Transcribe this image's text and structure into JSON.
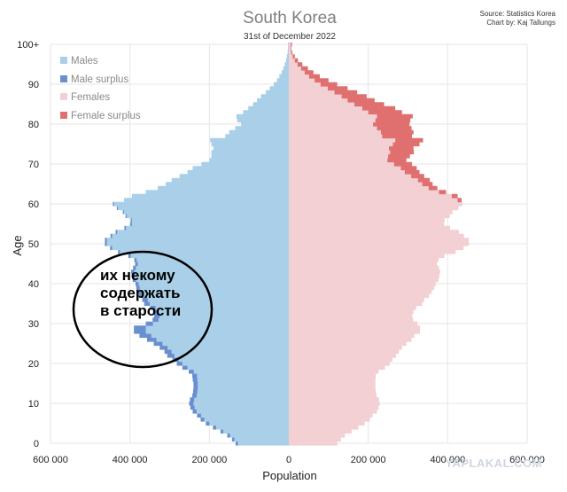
{
  "chart_data": {
    "type": "bar",
    "orientation": "horizontal-pyramid",
    "title": "South Korea",
    "subtitle": "31st of December 2022",
    "source_lines": [
      "Source: Statistics Korea",
      "Chart by: Kaj Tallungs"
    ],
    "xlabel": "Population",
    "ylabel": "Age",
    "xlim": [
      -600000,
      600000
    ],
    "ylim": [
      0,
      100
    ],
    "x_tick_values": [
      -600000,
      -400000,
      -200000,
      0,
      200000,
      400000,
      600000
    ],
    "x_tick_labels": [
      "600 000",
      "400 000",
      "200 000",
      "0",
      "200 000",
      "400 000",
      "600 000"
    ],
    "y_tick_values": [
      0,
      10,
      20,
      30,
      40,
      50,
      60,
      70,
      80,
      90,
      100
    ],
    "y_tick_labels": [
      "0",
      "10",
      "20",
      "30",
      "40",
      "50",
      "60",
      "70",
      "80",
      "90",
      "100+"
    ],
    "grid": true,
    "legend_position": "top-left",
    "categories": [
      0,
      1,
      2,
      3,
      4,
      5,
      6,
      7,
      8,
      9,
      10,
      11,
      12,
      13,
      14,
      15,
      16,
      17,
      18,
      19,
      20,
      21,
      22,
      23,
      24,
      25,
      26,
      27,
      28,
      29,
      30,
      31,
      32,
      33,
      34,
      35,
      36,
      37,
      38,
      39,
      40,
      41,
      42,
      43,
      44,
      45,
      46,
      47,
      48,
      49,
      50,
      51,
      52,
      53,
      54,
      55,
      56,
      57,
      58,
      59,
      60,
      61,
      62,
      63,
      64,
      65,
      66,
      67,
      68,
      69,
      70,
      71,
      72,
      73,
      74,
      75,
      76,
      77,
      78,
      79,
      80,
      81,
      82,
      83,
      84,
      85,
      86,
      87,
      88,
      89,
      90,
      91,
      92,
      93,
      94,
      95,
      96,
      97,
      98,
      99,
      100
    ],
    "series": [
      {
        "name": "Males",
        "values": [
          128000,
          137000,
          148000,
          165000,
          183000,
          200000,
          213000,
          221000,
          232000,
          237000,
          240000,
          238000,
          232000,
          230000,
          229000,
          229000,
          230000,
          231000,
          239000,
          255000,
          268000,
          277000,
          288000,
          295000,
          305000,
          318000,
          333000,
          346000,
          360000,
          360000,
          342000,
          328000,
          325000,
          328000,
          335000,
          350000,
          355000,
          365000,
          370000,
          375000,
          378000,
          385000,
          387000,
          389000,
          385000,
          380000,
          383000,
          398000,
          425000,
          445000,
          458000,
          458000,
          445000,
          432000,
          410000,
          395000,
          395000,
          408000,
          415000,
          430000,
          440000,
          415000,
          395000,
          360000,
          330000,
          310000,
          295000,
          275000,
          255000,
          242000,
          220000,
          200000,
          195000,
          195000,
          190000,
          195000,
          198000,
          160000,
          150000,
          135000,
          120000,
          130000,
          132000,
          115000,
          102000,
          90000,
          80000,
          70000,
          58000,
          48000,
          38000,
          30000,
          24000,
          18000,
          14000,
          10000,
          7000,
          5000,
          3000,
          2000,
          2000
        ],
        "color": "#a9d0e8"
      },
      {
        "name": "Male surplus",
        "values": [
          6000,
          6000,
          7000,
          7000,
          8000,
          9000,
          9000,
          10000,
          10000,
          11000,
          11000,
          11000,
          11000,
          11000,
          11000,
          11000,
          12000,
          12000,
          13000,
          13000,
          14000,
          16000,
          18000,
          18000,
          20000,
          22000,
          24000,
          30000,
          30000,
          30000,
          18000,
          15000,
          14000,
          14000,
          14000,
          14000,
          14000,
          12000,
          10000,
          9000,
          8000,
          8000,
          8000,
          8000,
          7000,
          7000,
          6000,
          6000,
          5000,
          5000,
          5000,
          5000,
          4000,
          4000,
          4000,
          4000,
          3000,
          3000,
          3000,
          3000,
          3000,
          0,
          0,
          0,
          0,
          0,
          0,
          0,
          0,
          0,
          0,
          0,
          0,
          0,
          0,
          0,
          0,
          0,
          0,
          0,
          0,
          0,
          0,
          0,
          0,
          0,
          0,
          0,
          0,
          0,
          0,
          0,
          0,
          0,
          0,
          0,
          0,
          0,
          0,
          0,
          0
        ],
        "color": "#6a8fcf"
      },
      {
        "name": "Females",
        "values": [
          122000,
          131000,
          141000,
          158000,
          175000,
          191000,
          204000,
          211000,
          222000,
          226000,
          229000,
          227000,
          221000,
          219000,
          218000,
          218000,
          218000,
          219000,
          226000,
          242000,
          254000,
          261000,
          270000,
          277000,
          285000,
          296000,
          309000,
          316000,
          330000,
          330000,
          324000,
          313000,
          311000,
          314000,
          321000,
          336000,
          341000,
          353000,
          360000,
          366000,
          370000,
          377000,
          379000,
          381000,
          378000,
          373000,
          377000,
          392000,
          420000,
          440000,
          453000,
          453000,
          441000,
          428000,
          406000,
          391000,
          392000,
          405000,
          412000,
          427000,
          437000,
          425000,
          410000,
          378000,
          352000,
          336000,
          325000,
          308000,
          292000,
          282000,
          265000,
          248000,
          250000,
          255000,
          252000,
          262000,
          268000,
          235000,
          232000,
          222000,
          212000,
          218000,
          222000,
          200000,
          185000,
          165000,
          148000,
          133000,
          115000,
          98000,
          80000,
          65000,
          51000,
          40000,
          31000,
          22000,
          15000,
          10000,
          6000,
          4000,
          5000
        ],
        "color": "#f2d0d3"
      },
      {
        "name": "Female surplus",
        "values": [
          0,
          0,
          0,
          0,
          0,
          0,
          0,
          0,
          0,
          0,
          0,
          0,
          0,
          0,
          0,
          0,
          0,
          0,
          0,
          0,
          0,
          0,
          0,
          0,
          0,
          0,
          0,
          0,
          0,
          0,
          0,
          0,
          0,
          0,
          0,
          0,
          0,
          0,
          0,
          0,
          0,
          0,
          0,
          0,
          0,
          0,
          0,
          0,
          0,
          0,
          0,
          0,
          0,
          0,
          0,
          0,
          0,
          0,
          0,
          0,
          0,
          10000,
          15000,
          18000,
          22000,
          26000,
          30000,
          33000,
          37000,
          40000,
          45000,
          48000,
          55000,
          60000,
          62000,
          67000,
          70000,
          75000,
          82000,
          87000,
          92000,
          88000,
          90000,
          85000,
          83000,
          75000,
          68000,
          63000,
          57000,
          50000,
          42000,
          35000,
          27000,
          22000,
          17000,
          12000,
          8000,
          5000,
          3000,
          2000,
          3000
        ],
        "color": "#e07070"
      }
    ],
    "annotations": [
      {
        "shape": "ellipse",
        "lines": [
          "их некому",
          "содержать",
          "в старости"
        ]
      }
    ]
  },
  "watermark": "YAPLAKAL.COM"
}
